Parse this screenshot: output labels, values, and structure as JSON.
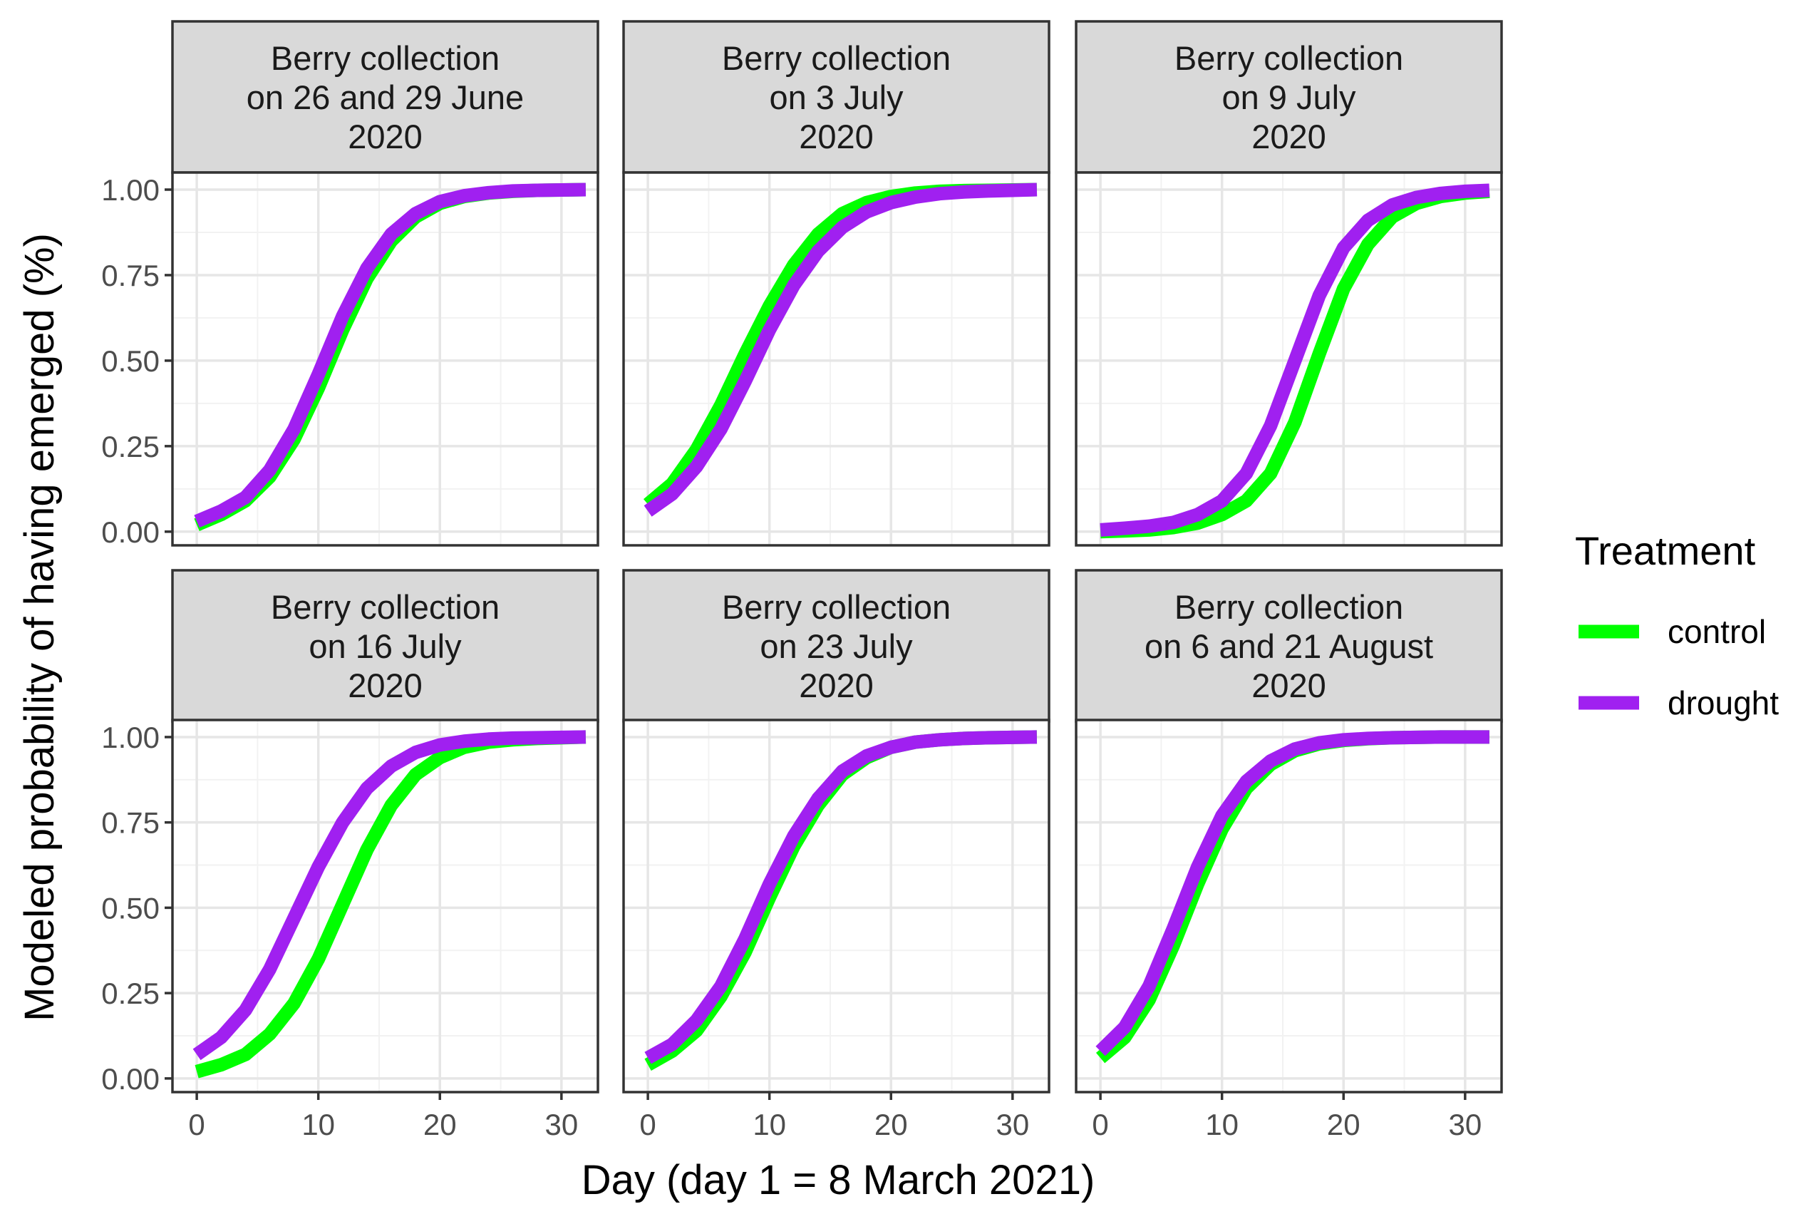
{
  "chart_data": {
    "type": "line",
    "xlabel": "Day (day 1 = 8 March 2021)",
    "ylabel": "Modeled probability of having emerged (%)",
    "xlim": [
      -2,
      33
    ],
    "ylim": [
      -0.04,
      1.05
    ],
    "x_ticks": [
      0,
      10,
      20,
      30
    ],
    "x_tick_labels": [
      "0",
      "10",
      "20",
      "30"
    ],
    "y_ticks": [
      0,
      0.25,
      0.5,
      0.75,
      1.0
    ],
    "y_tick_labels": [
      "0.00",
      "0.25",
      "0.50",
      "0.75",
      "1.00"
    ],
    "x": [
      0,
      2,
      4,
      6,
      8,
      10,
      12,
      14,
      16,
      18,
      20,
      22,
      24,
      26,
      28,
      30,
      32
    ],
    "legend": {
      "title": "Treatment",
      "entries": [
        {
          "name": "control",
          "color": "#00ff00"
        },
        {
          "name": "drought",
          "color": "#a020f0"
        }
      ]
    },
    "panels": [
      {
        "title": [
          "Berry collection",
          "on 26 and 29 June",
          "2020"
        ],
        "series": [
          {
            "name": "control",
            "values": [
              0.02,
              0.05,
              0.09,
              0.16,
              0.27,
              0.42,
              0.59,
              0.74,
              0.85,
              0.92,
              0.96,
              0.98,
              0.99,
              0.995,
              0.998,
              0.999,
              1.0
            ]
          },
          {
            "name": "drought",
            "values": [
              0.03,
              0.06,
              0.1,
              0.18,
              0.3,
              0.46,
              0.63,
              0.77,
              0.87,
              0.93,
              0.965,
              0.982,
              0.991,
              0.996,
              0.998,
              0.999,
              1.0
            ]
          }
        ]
      },
      {
        "title": [
          "Berry collection",
          "on 3 July",
          "2020"
        ],
        "series": [
          {
            "name": "control",
            "values": [
              0.08,
              0.14,
              0.24,
              0.37,
              0.52,
              0.66,
              0.78,
              0.87,
              0.93,
              0.962,
              0.98,
              0.99,
              0.995,
              0.997,
              0.998,
              0.999,
              1.0
            ]
          },
          {
            "name": "drought",
            "values": [
              0.06,
              0.11,
              0.19,
              0.3,
              0.44,
              0.59,
              0.72,
              0.82,
              0.89,
              0.935,
              0.962,
              0.978,
              0.988,
              0.993,
              0.996,
              0.998,
              1.0
            ]
          }
        ]
      },
      {
        "title": [
          "Berry collection",
          "on 9 July",
          "2020"
        ],
        "series": [
          {
            "name": "control",
            "values": [
              0.0,
              0.002,
              0.005,
              0.012,
              0.025,
              0.05,
              0.09,
              0.17,
              0.32,
              0.52,
              0.71,
              0.84,
              0.92,
              0.96,
              0.98,
              0.99,
              0.995
            ]
          },
          {
            "name": "drought",
            "values": [
              0.005,
              0.01,
              0.016,
              0.027,
              0.05,
              0.09,
              0.17,
              0.31,
              0.5,
              0.69,
              0.83,
              0.91,
              0.955,
              0.977,
              0.989,
              0.995,
              0.998
            ]
          }
        ]
      },
      {
        "title": [
          "Berry collection",
          "on 16 July",
          "2020"
        ],
        "series": [
          {
            "name": "control",
            "values": [
              0.02,
              0.04,
              0.07,
              0.13,
              0.22,
              0.35,
              0.51,
              0.67,
              0.8,
              0.89,
              0.94,
              0.97,
              0.985,
              0.992,
              0.996,
              0.998,
              1.0
            ]
          },
          {
            "name": "drought",
            "values": [
              0.07,
              0.12,
              0.2,
              0.32,
              0.47,
              0.62,
              0.75,
              0.85,
              0.915,
              0.955,
              0.977,
              0.988,
              0.994,
              0.997,
              0.998,
              0.999,
              1.0
            ]
          }
        ]
      },
      {
        "title": [
          "Berry collection",
          "on 23 July",
          "2020"
        ],
        "series": [
          {
            "name": "control",
            "values": [
              0.04,
              0.08,
              0.14,
              0.24,
              0.37,
              0.53,
              0.68,
              0.8,
              0.89,
              0.94,
              0.97,
              0.985,
              0.992,
              0.996,
              0.998,
              0.999,
              1.0
            ]
          },
          {
            "name": "drought",
            "values": [
              0.06,
              0.1,
              0.17,
              0.27,
              0.41,
              0.57,
              0.71,
              0.82,
              0.9,
              0.945,
              0.97,
              0.985,
              0.992,
              0.996,
              0.998,
              0.999,
              1.0
            ]
          }
        ]
      },
      {
        "title": [
          "Berry collection",
          "on 6 and 21 August",
          "2020"
        ],
        "series": [
          {
            "name": "control",
            "values": [
              0.06,
              0.12,
              0.23,
              0.39,
              0.57,
              0.73,
              0.85,
              0.92,
              0.96,
              0.98,
              0.99,
              0.995,
              0.998,
              0.999,
              1.0,
              1.0,
              1.0
            ]
          },
          {
            "name": "drought",
            "values": [
              0.08,
              0.15,
              0.27,
              0.44,
              0.62,
              0.77,
              0.87,
              0.93,
              0.965,
              0.983,
              0.992,
              0.996,
              0.998,
              0.999,
              1.0,
              1.0,
              1.0
            ]
          }
        ]
      }
    ]
  }
}
